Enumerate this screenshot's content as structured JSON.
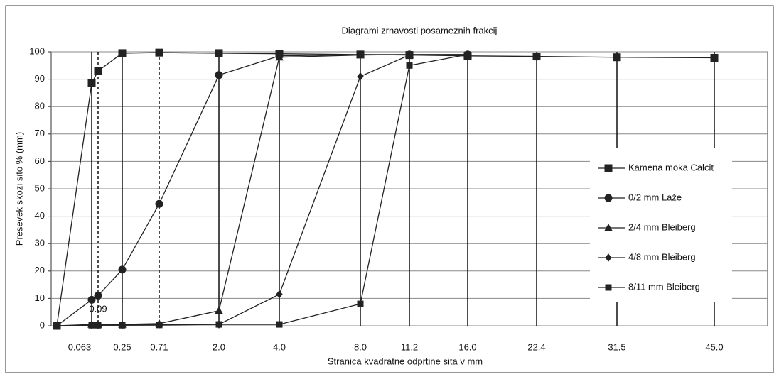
{
  "chart_data": {
    "type": "line",
    "title": "Diagrami zrnavosti posameznih frakcij",
    "xlabel": "Stranica kvadratne odprtine sita v mm",
    "ylabel": "Presevek skozi sito % (mm)",
    "categories": [
      null,
      "0.063",
      "0.09",
      "0.25",
      "0.71",
      "2.0",
      "4.0",
      "8.0",
      "11.2",
      "16.0",
      "22.4",
      "31.5",
      "45.0"
    ],
    "ylim": [
      0,
      100
    ],
    "yticks": [
      0,
      10,
      20,
      30,
      40,
      50,
      60,
      70,
      80,
      90,
      100
    ],
    "grid": true,
    "series": [
      {
        "name": "Kamena moka Calcit",
        "marker": "square",
        "color": "#222",
        "values": [
          0,
          88.5,
          93,
          99.5,
          99.7,
          99.5,
          99.3,
          99,
          98.8,
          98.5,
          98.3,
          98,
          97.8
        ]
      },
      {
        "name": "0/2 mm Laže",
        "marker": "circle",
        "color": "#222",
        "values": [
          0,
          9.5,
          11,
          20.5,
          44.5,
          91.5,
          98.5,
          99,
          99,
          99,
          null,
          null,
          null
        ]
      },
      {
        "name": "2/4 mm Bleiberg",
        "marker": "triangle",
        "color": "#222",
        "values": [
          0,
          0.5,
          0.5,
          0.5,
          0.8,
          5.5,
          98,
          98.8,
          99,
          99,
          null,
          null,
          null
        ]
      },
      {
        "name": "4/8 mm Bleiberg",
        "marker": "diamond",
        "color": "#222",
        "values": [
          0,
          0.3,
          0.3,
          0.3,
          0.5,
          0.5,
          11.5,
          91,
          98.8,
          99,
          null,
          null,
          null
        ]
      },
      {
        "name": "8/11 mm Bleiberg",
        "marker": "smallsquare",
        "color": "#222",
        "values": [
          0,
          0.2,
          0.2,
          0.2,
          0.3,
          0.5,
          0.5,
          8,
          95,
          99,
          null,
          null,
          null
        ]
      }
    ]
  }
}
